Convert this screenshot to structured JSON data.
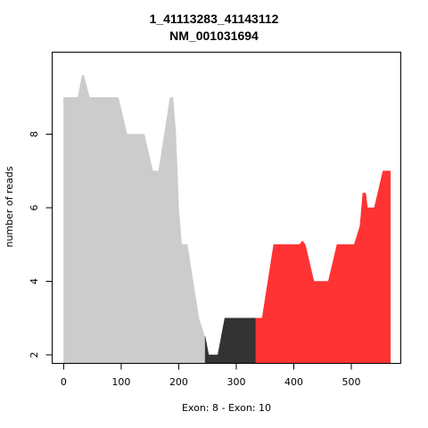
{
  "chart_data": {
    "type": "area",
    "title": "1_41113283_41143112",
    "subtitle": "NM_001031694",
    "xlabel": "Exon: 8 - Exon: 10",
    "ylabel": "number of reads",
    "xlim": [
      -20,
      586
    ],
    "ylim": [
      1.77,
      10.23
    ],
    "x_ticks": [
      0,
      100,
      200,
      300,
      400,
      500
    ],
    "y_ticks": [
      2,
      4,
      6,
      8
    ],
    "grid": false,
    "legend": "none",
    "series": [
      {
        "color": "#cccccc",
        "points": [
          [
            0,
            9
          ],
          [
            25,
            9
          ],
          [
            32,
            9.6
          ],
          [
            35,
            9.6
          ],
          [
            45,
            9
          ],
          [
            95,
            9
          ],
          [
            110,
            8
          ],
          [
            140,
            8
          ],
          [
            155,
            7
          ],
          [
            165,
            7
          ],
          [
            185,
            9
          ],
          [
            190,
            9
          ],
          [
            195,
            8
          ],
          [
            200,
            6
          ],
          [
            205,
            5
          ],
          [
            215,
            5
          ],
          [
            235,
            3
          ],
          [
            245,
            2.5
          ],
          [
            246,
            2.5
          ]
        ]
      },
      {
        "color": "#333333",
        "points": [
          [
            246,
            2.5
          ],
          [
            252,
            2
          ],
          [
            268,
            2
          ],
          [
            280,
            3
          ],
          [
            334,
            3
          ]
        ]
      },
      {
        "color": "#ff3333",
        "points": [
          [
            334,
            3
          ],
          [
            345,
            3
          ],
          [
            365,
            5
          ],
          [
            410,
            5
          ],
          [
            415,
            5.1
          ],
          [
            420,
            5
          ],
          [
            435,
            4
          ],
          [
            460,
            4
          ],
          [
            475,
            5
          ],
          [
            505,
            5
          ],
          [
            515,
            5.5
          ],
          [
            520,
            6.4
          ],
          [
            525,
            6.4
          ],
          [
            528,
            6
          ],
          [
            540,
            6
          ],
          [
            555,
            7
          ],
          [
            568,
            7
          ]
        ]
      }
    ]
  }
}
